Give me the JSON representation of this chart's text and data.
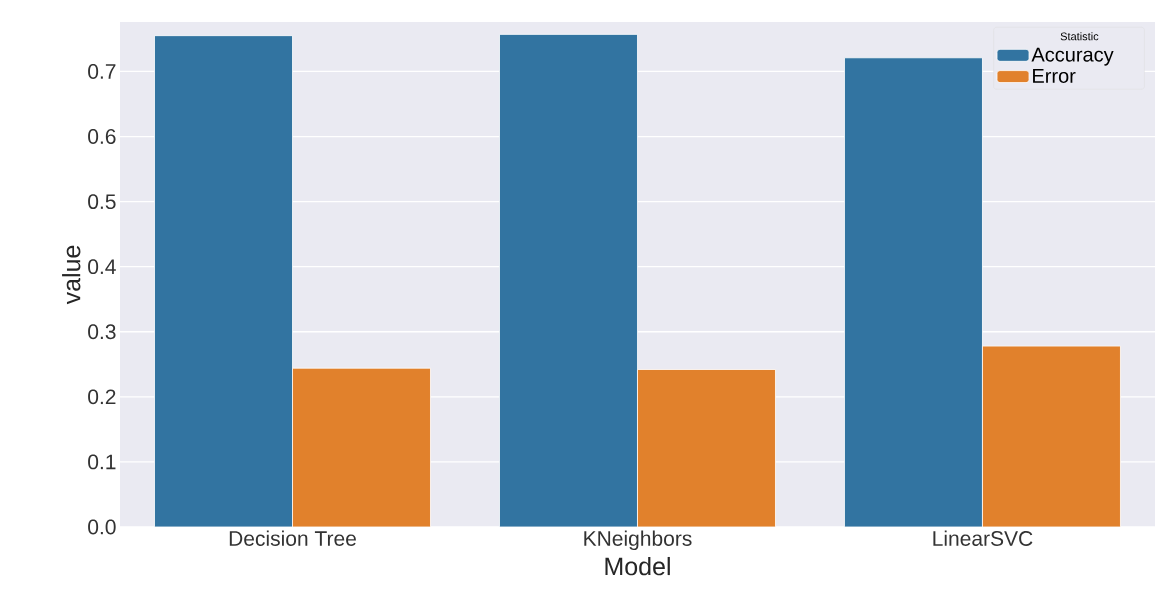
{
  "chart_data": {
    "type": "bar",
    "xlabel": "Model",
    "ylabel": "value",
    "legend_title": "Statistic",
    "categories": [
      "Decision Tree",
      "KNeighbors",
      "LinearSVC"
    ],
    "series": [
      {
        "name": "Accuracy",
        "color": "#3274a1",
        "values": [
          0.755,
          0.757,
          0.721
        ]
      },
      {
        "name": "Error",
        "color": "#e1812c",
        "values": [
          0.244,
          0.242,
          0.278
        ]
      }
    ],
    "ylim": [
      0,
      0.776
    ],
    "yticks": [
      {
        "value": 0,
        "label": "0.0"
      },
      {
        "value": 0.1,
        "label": "0.1"
      },
      {
        "value": 0.2,
        "label": "0.2"
      },
      {
        "value": 0.3,
        "label": "0.3"
      },
      {
        "value": 0.4,
        "label": "0.4"
      },
      {
        "value": 0.5,
        "label": "0.5"
      },
      {
        "value": 0.6,
        "label": "0.6"
      },
      {
        "value": 0.7,
        "label": "0.7"
      }
    ],
    "grid": "y",
    "legend": "top right"
  }
}
